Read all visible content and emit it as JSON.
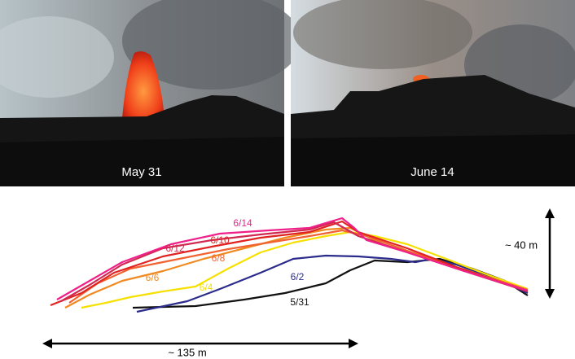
{
  "photos": [
    {
      "caption": "May 31"
    },
    {
      "caption": "June 14"
    }
  ],
  "profiles": [
    {
      "label": "5/31",
      "color": "#111111"
    },
    {
      "label": "6/2",
      "color": "#2b2b8c"
    },
    {
      "label": "6/4",
      "color": "#f5e000"
    },
    {
      "label": "6/6",
      "color": "#f08a20"
    },
    {
      "label": "6/8",
      "color": "#f26230"
    },
    {
      "label": "6/10",
      "color": "#e02222"
    },
    {
      "label": "6/12",
      "color": "#d02850"
    },
    {
      "label": "6/14",
      "color": "#f0208a"
    }
  ],
  "scale": {
    "height": "~ 40 m",
    "width": "~ 135 m"
  }
}
